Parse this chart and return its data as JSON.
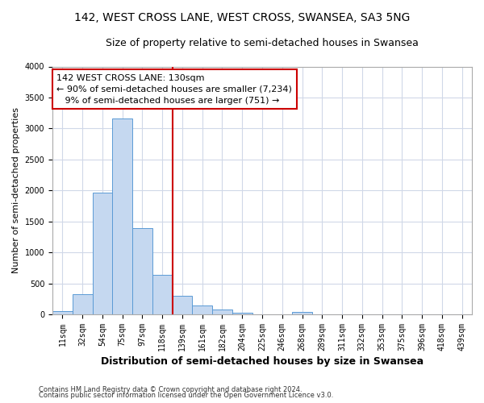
{
  "title": "142, WEST CROSS LANE, WEST CROSS, SWANSEA, SA3 5NG",
  "subtitle": "Size of property relative to semi-detached houses in Swansea",
  "xlabel": "Distribution of semi-detached houses by size in Swansea",
  "ylabel": "Number of semi-detached properties",
  "categories": [
    "11sqm",
    "32sqm",
    "54sqm",
    "75sqm",
    "97sqm",
    "118sqm",
    "139sqm",
    "161sqm",
    "182sqm",
    "204sqm",
    "225sqm",
    "246sqm",
    "268sqm",
    "289sqm",
    "311sqm",
    "332sqm",
    "353sqm",
    "375sqm",
    "396sqm",
    "418sqm",
    "439sqm"
  ],
  "values": [
    50,
    320,
    1970,
    3160,
    1390,
    640,
    295,
    145,
    80,
    30,
    5,
    2,
    40,
    0,
    0,
    0,
    0,
    0,
    0,
    0,
    0
  ],
  "bar_color": "#c5d8f0",
  "bar_edge_color": "#5b9bd5",
  "vline_x": 6.0,
  "annotation_text": "142 WEST CROSS LANE: 130sqm\n← 90% of semi-detached houses are smaller (7,234)\n   9% of semi-detached houses are larger (751) →",
  "annotation_box_color": "#ffffff",
  "annotation_box_edge": "#cc0000",
  "vline_color": "#cc0000",
  "ylim": [
    0,
    4000
  ],
  "yticks": [
    0,
    500,
    1000,
    1500,
    2000,
    2500,
    3000,
    3500,
    4000
  ],
  "footer1": "Contains HM Land Registry data © Crown copyright and database right 2024.",
  "footer2": "Contains public sector information licensed under the Open Government Licence v3.0.",
  "background_color": "#ffffff",
  "plot_bg_color": "#ffffff",
  "grid_color": "#d0d8e8",
  "title_fontsize": 10,
  "subtitle_fontsize": 9,
  "annotation_fontsize": 8,
  "ylabel_fontsize": 8,
  "xlabel_fontsize": 9,
  "tick_fontsize": 7
}
